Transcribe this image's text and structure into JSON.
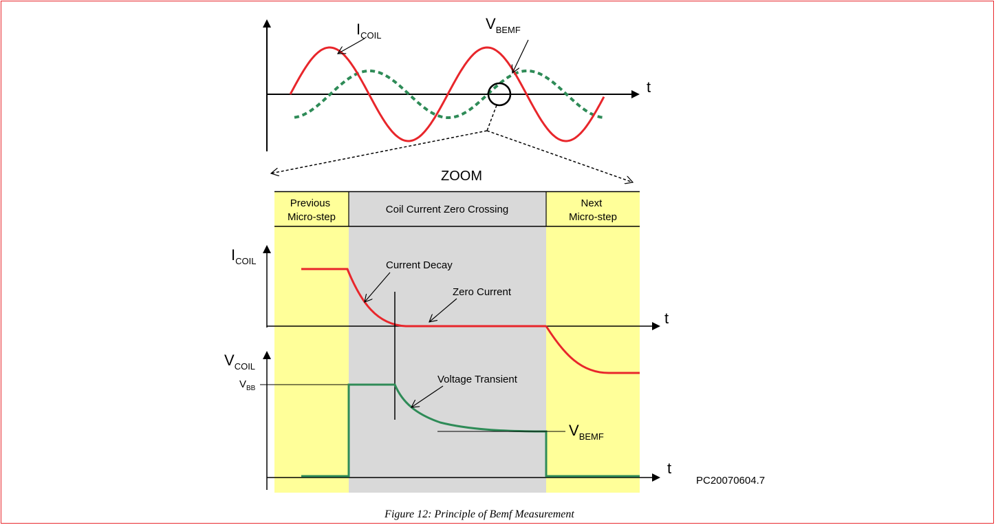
{
  "top_chart": {
    "i_coil_label": "I",
    "i_coil_sub": "COIL",
    "v_bemf_label": "V",
    "v_bemf_sub": "BEMF",
    "t_axis": "t"
  },
  "zoom_label": "ZOOM",
  "columns": {
    "previous": [
      "Previous",
      "Micro-step"
    ],
    "middle": "Coil Current Zero Crossing",
    "next": [
      "Next",
      "Micro-step"
    ]
  },
  "current_plot": {
    "axis_label": "I",
    "axis_sub": "COIL",
    "t_axis": "t",
    "current_decay": "Current Decay",
    "zero_current": "Zero Current"
  },
  "voltage_plot": {
    "axis_label": "V",
    "axis_sub": "COIL",
    "t_axis": "t",
    "vbb_label": "V",
    "vbb_sub": "BB",
    "voltage_transient": "Voltage Transient",
    "vbemf_label": "V",
    "vbemf_sub": "BEMF"
  },
  "reference": "PC20070604.7",
  "caption": "Figure 12: Principle of Bemf Measurement",
  "colors": {
    "coil_current": "#e8262b",
    "bemf_voltage": "#2e8b57",
    "highlight": "#ffff99",
    "zoom_region": "#d9d9d9"
  }
}
